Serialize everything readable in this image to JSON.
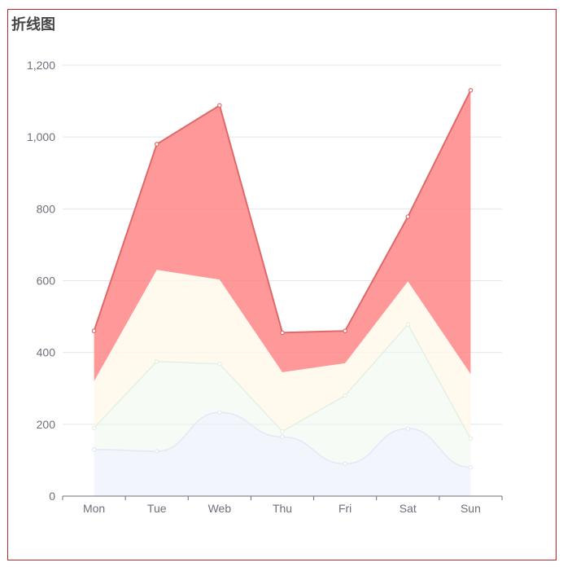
{
  "chart_data": {
    "type": "area",
    "title": "折线图",
    "stacked": true,
    "categories": [
      "Mon",
      "Tue",
      "Web",
      "Thu",
      "Fri",
      "Sat",
      "Sun"
    ],
    "ylim": [
      0,
      1200
    ],
    "yticks": [
      0,
      200,
      400,
      600,
      800,
      1000,
      1200
    ],
    "ytick_labels": [
      "0",
      "200",
      "400",
      "600",
      "800",
      "1,000",
      "1,200"
    ],
    "grid": true,
    "series": [
      {
        "values": [
          130,
          125,
          233,
          165,
          90,
          188,
          80
        ],
        "color": "#e4e8f5",
        "fill": "#eef1f9",
        "fill_opacity": 0.75,
        "smooth": true,
        "show_line": true
      },
      {
        "values": [
          60,
          250,
          135,
          15,
          190,
          290,
          80
        ],
        "color": "#e2f1e2",
        "fill": "#eef8ee",
        "fill_opacity": 0.55,
        "smooth": false,
        "show_line": true
      },
      {
        "values": [
          130,
          255,
          235,
          165,
          90,
          120,
          180
        ],
        "color": "#fdf6ea",
        "fill": "#fff7ea",
        "fill_opacity": 0.8,
        "smooth": false,
        "show_line": false
      },
      {
        "values": [
          140,
          350,
          485,
          110,
          90,
          180,
          790
        ],
        "color": "#e06868",
        "fill": "#ff8080",
        "fill_opacity": 0.8,
        "smooth": false,
        "show_line": true
      }
    ]
  }
}
